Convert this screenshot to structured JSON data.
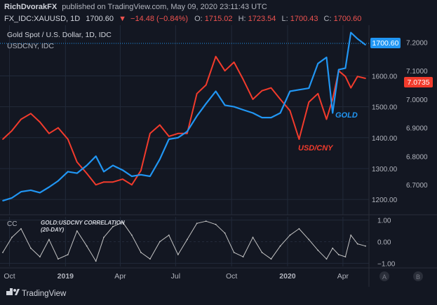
{
  "header": {
    "author": "RichDvorakFX",
    "published_text": "published on TradingView.com, May 09, 2020 23:11:43 UTC",
    "symbol_line": {
      "symbol": "FX_IDC:XAUUSD, 1D",
      "price": "1700.60",
      "change": "−14.48 (−0.84%)",
      "open_label": "O:",
      "open": "1715.02",
      "high_label": "H:",
      "high": "1723.54",
      "low_label": "L:",
      "low": "1700.43",
      "close_label": "C:",
      "close": "1700.60"
    }
  },
  "legend": {
    "main_title": "Gold Spot / U.S. Dollar, 1D, IDC",
    "overlay_title": "USDCNY, IDC"
  },
  "annotations": {
    "gold": "GOLD",
    "usdcny": "USD/CNY"
  },
  "price_badges": {
    "gold": "1700.60",
    "usdcny": "7.0735"
  },
  "lower_pane": {
    "indicator_label": "CC",
    "title_line1": "GOLD:USDCNY CORRELATION",
    "title_line2": "(20-DAY)"
  },
  "footer": {
    "brand": "TradingView",
    "button_a": "A",
    "button_b": "B"
  },
  "colors": {
    "background": "#131722",
    "gold_series": "#2196f3",
    "usdcny_series": "#f23b2c",
    "correlation_line": "#c4c4c4",
    "negative_change": "#ef5350",
    "gridline": "#222a3a",
    "axis_text": "#b2b5be"
  },
  "chart_data": [
    {
      "type": "line",
      "title": "Gold Spot / U.S. Dollar, 1D, IDC",
      "x_tick_labels": [
        "Oct",
        "2019",
        "Apr",
        "Jul",
        "Oct",
        "2020",
        "Apr"
      ],
      "left_axis_ticks": [
        "1200.00",
        "1300.00",
        "1400.00",
        "1500.00",
        "1600.00"
      ],
      "left_ylim": [
        1155,
        1755
      ],
      "right_axis_ticks": [
        "6.7000",
        "6.8000",
        "6.9000",
        "7.0000",
        "7.1000",
        "7.2000"
      ],
      "right_ylim": [
        6.6,
        7.25
      ],
      "grid": true,
      "series": [
        {
          "name": "GOLD",
          "axis": "left",
          "color": "#2196f3",
          "points": [
            [
              "2018-09-20",
              1196
            ],
            [
              "2018-10-05",
              1205
            ],
            [
              "2018-10-20",
              1225
            ],
            [
              "2018-11-05",
              1230
            ],
            [
              "2018-11-20",
              1222
            ],
            [
              "2018-12-05",
              1240
            ],
            [
              "2018-12-20",
              1260
            ],
            [
              "2019-01-05",
              1290
            ],
            [
              "2019-01-20",
              1285
            ],
            [
              "2019-02-05",
              1310
            ],
            [
              "2019-02-20",
              1340
            ],
            [
              "2019-03-05",
              1290
            ],
            [
              "2019-03-20",
              1310
            ],
            [
              "2019-04-05",
              1295
            ],
            [
              "2019-04-20",
              1275
            ],
            [
              "2019-05-05",
              1280
            ],
            [
              "2019-05-20",
              1275
            ],
            [
              "2019-06-05",
              1330
            ],
            [
              "2019-06-20",
              1395
            ],
            [
              "2019-07-05",
              1400
            ],
            [
              "2019-07-20",
              1420
            ],
            [
              "2019-08-05",
              1470
            ],
            [
              "2019-08-20",
              1510
            ],
            [
              "2019-09-05",
              1550
            ],
            [
              "2019-09-20",
              1505
            ],
            [
              "2019-10-05",
              1500
            ],
            [
              "2019-10-20",
              1490
            ],
            [
              "2019-11-05",
              1480
            ],
            [
              "2019-11-20",
              1465
            ],
            [
              "2019-12-05",
              1465
            ],
            [
              "2019-12-20",
              1480
            ],
            [
              "2020-01-05",
              1550
            ],
            [
              "2020-01-20",
              1555
            ],
            [
              "2020-02-05",
              1560
            ],
            [
              "2020-02-20",
              1640
            ],
            [
              "2020-03-05",
              1660
            ],
            [
              "2020-03-15",
              1480
            ],
            [
              "2020-03-25",
              1620
            ],
            [
              "2020-04-05",
              1625
            ],
            [
              "2020-04-14",
              1740
            ],
            [
              "2020-04-25",
              1720
            ],
            [
              "2020-05-08",
              1700.6
            ]
          ]
        },
        {
          "name": "USD/CNY",
          "axis": "right",
          "color": "#f23b2c",
          "points": [
            [
              "2018-09-20",
              6.86
            ],
            [
              "2018-10-05",
              6.89
            ],
            [
              "2018-10-20",
              6.93
            ],
            [
              "2018-11-05",
              6.95
            ],
            [
              "2018-11-20",
              6.92
            ],
            [
              "2018-12-05",
              6.88
            ],
            [
              "2018-12-20",
              6.9
            ],
            [
              "2019-01-05",
              6.86
            ],
            [
              "2019-01-20",
              6.78
            ],
            [
              "2019-02-05",
              6.74
            ],
            [
              "2019-02-20",
              6.7
            ],
            [
              "2019-03-05",
              6.71
            ],
            [
              "2019-03-20",
              6.71
            ],
            [
              "2019-04-05",
              6.72
            ],
            [
              "2019-04-20",
              6.7
            ],
            [
              "2019-05-05",
              6.75
            ],
            [
              "2019-05-20",
              6.88
            ],
            [
              "2019-06-05",
              6.91
            ],
            [
              "2019-06-20",
              6.87
            ],
            [
              "2019-07-05",
              6.88
            ],
            [
              "2019-07-20",
              6.88
            ],
            [
              "2019-08-05",
              7.02
            ],
            [
              "2019-08-20",
              7.05
            ],
            [
              "2019-09-05",
              7.15
            ],
            [
              "2019-09-20",
              7.1
            ],
            [
              "2019-10-05",
              7.13
            ],
            [
              "2019-10-20",
              7.07
            ],
            [
              "2019-11-05",
              7.0
            ],
            [
              "2019-11-20",
              7.03
            ],
            [
              "2019-12-05",
              7.04
            ],
            [
              "2019-12-20",
              7.0
            ],
            [
              "2020-01-05",
              6.96
            ],
            [
              "2020-01-20",
              6.86
            ],
            [
              "2020-02-05",
              6.99
            ],
            [
              "2020-02-20",
              7.02
            ],
            [
              "2020-03-05",
              6.93
            ],
            [
              "2020-03-15",
              7.0
            ],
            [
              "2020-03-25",
              7.1
            ],
            [
              "2020-04-05",
              7.08
            ],
            [
              "2020-04-14",
              7.04
            ],
            [
              "2020-04-25",
              7.08
            ],
            [
              "2020-05-08",
              7.0735
            ]
          ]
        }
      ]
    },
    {
      "type": "line",
      "title": "GOLD:USDCNY CORRELATION (20-DAY)",
      "x_tick_labels": [
        "Oct",
        "2019",
        "Apr",
        "Jul",
        "Oct",
        "2020",
        "Apr"
      ],
      "right_axis_ticks": [
        "1.00",
        "0.00",
        "−1.00"
      ],
      "ylim": [
        -1.15,
        1.15
      ],
      "grid": true,
      "series": [
        {
          "name": "CC",
          "color": "#c4c4c4",
          "points": [
            [
              "2018-09-20",
              -0.5
            ],
            [
              "2018-10-05",
              0.2
            ],
            [
              "2018-10-20",
              0.6
            ],
            [
              "2018-11-05",
              -0.3
            ],
            [
              "2018-11-20",
              -0.7
            ],
            [
              "2018-12-05",
              0.1
            ],
            [
              "2018-12-20",
              -0.8
            ],
            [
              "2019-01-05",
              -0.6
            ],
            [
              "2019-01-20",
              0.5
            ],
            [
              "2019-02-05",
              -0.2
            ],
            [
              "2019-02-20",
              -0.9
            ],
            [
              "2019-03-05",
              0.2
            ],
            [
              "2019-03-20",
              0.7
            ],
            [
              "2019-04-05",
              0.9
            ],
            [
              "2019-04-20",
              0.3
            ],
            [
              "2019-05-05",
              -0.5
            ],
            [
              "2019-05-20",
              -0.8
            ],
            [
              "2019-06-05",
              0.0
            ],
            [
              "2019-06-20",
              0.3
            ],
            [
              "2019-07-05",
              -0.6
            ],
            [
              "2019-07-20",
              0.1
            ],
            [
              "2019-08-05",
              0.85
            ],
            [
              "2019-08-20",
              0.95
            ],
            [
              "2019-09-05",
              0.8
            ],
            [
              "2019-09-20",
              0.4
            ],
            [
              "2019-10-05",
              -0.5
            ],
            [
              "2019-10-20",
              -0.7
            ],
            [
              "2019-11-05",
              0.2
            ],
            [
              "2019-11-20",
              -0.5
            ],
            [
              "2019-12-05",
              -0.8
            ],
            [
              "2019-12-20",
              -0.2
            ],
            [
              "2020-01-05",
              0.3
            ],
            [
              "2020-01-20",
              0.6
            ],
            [
              "2020-02-05",
              0.1
            ],
            [
              "2020-02-20",
              -0.4
            ],
            [
              "2020-03-05",
              -0.8
            ],
            [
              "2020-03-15",
              -0.3
            ],
            [
              "2020-03-25",
              -0.6
            ],
            [
              "2020-04-05",
              -0.7
            ],
            [
              "2020-04-14",
              0.3
            ],
            [
              "2020-04-25",
              -0.1
            ],
            [
              "2020-05-08",
              -0.2
            ]
          ]
        }
      ]
    }
  ]
}
